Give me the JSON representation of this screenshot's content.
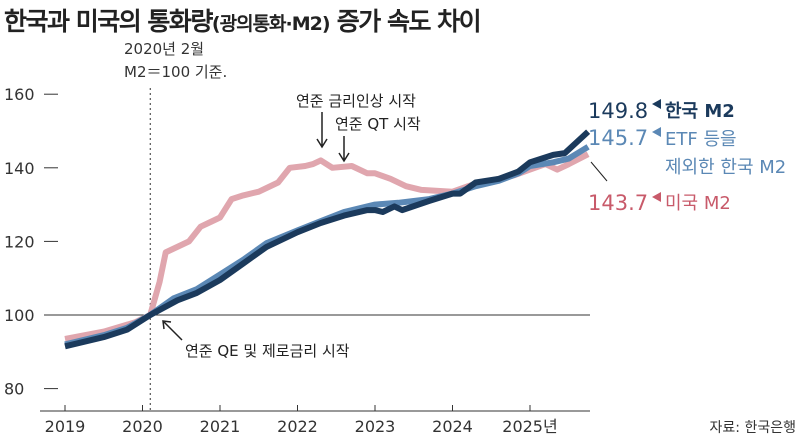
{
  "chart_data": {
    "type": "line",
    "title": "한국과 미국의 통화량",
    "title_sub": "(광의통화·M2)",
    "title_tail": " 증가 속도 차이",
    "base_note": [
      "2020년 2월",
      "M2＝100 기준."
    ],
    "source": "자료: 한국은행",
    "xlim": [
      2018.95,
      2025.95
    ],
    "ylim": [
      80,
      160
    ],
    "yticks": [
      80,
      100,
      120,
      140,
      160
    ],
    "xticks": [
      2019,
      2020,
      2021,
      2022,
      2023,
      2024,
      2025
    ],
    "xtick_labels": [
      "2019",
      "2020",
      "2021",
      "2022",
      "2023",
      "2024",
      "2025년"
    ],
    "colors": {
      "korea": "#1b3a5c",
      "etf": "#5b88b5",
      "us": "#e0a6ae",
      "us_label": "#c85a6a"
    },
    "series": [
      {
        "name": "미국 M2",
        "key": "us",
        "final": "143.7",
        "x": [
          2019.0,
          2019.5,
          2019.9,
          2020.1,
          2020.22,
          2020.3,
          2020.6,
          2020.75,
          2020.85,
          2021.0,
          2021.15,
          2021.3,
          2021.5,
          2021.75,
          2021.9,
          2022.1,
          2022.2,
          2022.3,
          2022.45,
          2022.7,
          2022.9,
          2023.0,
          2023.2,
          2023.4,
          2023.6,
          2024.0,
          2024.2,
          2024.35,
          2024.5,
          2024.8,
          2025.0,
          2025.2,
          2025.35,
          2025.5,
          2025.75
        ],
        "y": [
          93.5,
          95.5,
          98,
          100,
          109,
          117,
          120,
          124,
          125,
          126.5,
          131.5,
          132.5,
          133.5,
          136,
          140,
          140.5,
          141,
          142,
          140,
          140.5,
          138.5,
          138.5,
          137,
          135,
          134,
          133.5,
          135,
          136,
          136.5,
          138,
          139.5,
          141,
          139.5,
          141,
          143.7
        ]
      },
      {
        "name": "ETF 등을 제외한 한국 M2",
        "key": "etf",
        "final": "145.7",
        "x": [
          2019.0,
          2019.5,
          2019.8,
          2020.1,
          2020.4,
          2020.7,
          2021.0,
          2021.3,
          2021.6,
          2022.0,
          2022.3,
          2022.6,
          2023.0,
          2023.3,
          2023.7,
          2024.0,
          2024.3,
          2024.6,
          2024.85,
          2025.0,
          2025.3,
          2025.5,
          2025.75
        ],
        "y": [
          92,
          94.5,
          96.5,
          100,
          104.5,
          107,
          111,
          115,
          119.5,
          123,
          125.5,
          128,
          130,
          130.5,
          131.5,
          133,
          135,
          136.5,
          138.5,
          140.5,
          141.5,
          142.5,
          145.7
        ]
      },
      {
        "name": "한국 M2",
        "key": "korea",
        "final": "149.8",
        "x": [
          2019.0,
          2019.5,
          2019.8,
          2020.1,
          2020.45,
          2020.7,
          2021.0,
          2021.3,
          2021.6,
          2022.0,
          2022.3,
          2022.6,
          2022.9,
          2023.0,
          2023.1,
          2023.25,
          2023.35,
          2023.7,
          2024.0,
          2024.1,
          2024.3,
          2024.6,
          2024.85,
          2025.0,
          2025.3,
          2025.45,
          2025.75
        ],
        "y": [
          91.5,
          94,
          96,
          100,
          104,
          106,
          109.5,
          114,
          118.5,
          122.5,
          125,
          127,
          128.5,
          128.5,
          128,
          129.5,
          128.5,
          131,
          133,
          133,
          136,
          137,
          139,
          141.5,
          143.5,
          144,
          149.8
        ]
      }
    ],
    "legend": {
      "korea": "한국 M2",
      "etf": [
        "ETF 등을",
        "제외한 한국 M2"
      ],
      "us": "미국 M2"
    },
    "annotations": {
      "rate_hike": "연준 금리인상 시작",
      "qt": "연준 QT 시작",
      "qe": "연준 QE 및 제로금리 시작"
    }
  }
}
